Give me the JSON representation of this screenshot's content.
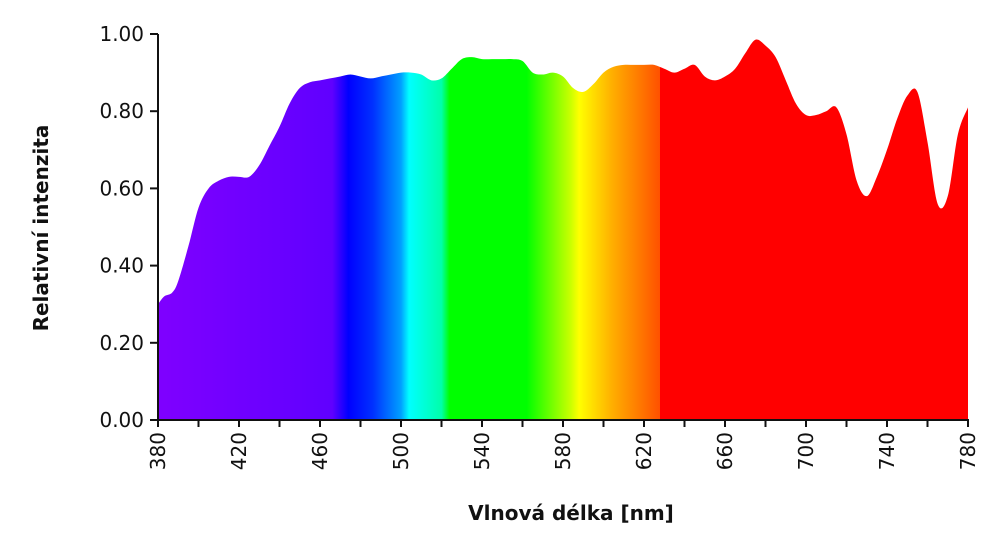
{
  "chart_data": {
    "type": "area",
    "xlabel": "Vlnová délka [nm]",
    "ylabel": "Relativní intenzita",
    "xlim": [
      380,
      780
    ],
    "ylim": [
      0,
      1
    ],
    "x_ticks": [
      380,
      420,
      460,
      500,
      540,
      580,
      620,
      660,
      700,
      740,
      780
    ],
    "y_ticks": [
      0,
      0.2,
      0.4,
      0.6,
      0.8,
      1.0
    ],
    "y_tick_labels": [
      "0.00",
      "0.20",
      "0.40",
      "0.60",
      "0.80",
      "1.00"
    ],
    "grid": false,
    "fill": "spectral gradient by wavelength",
    "series": [
      {
        "x": [
          380,
          383,
          387,
          390,
          395,
          400,
          405,
          410,
          415,
          420,
          425,
          430,
          435,
          440,
          445,
          450,
          455,
          460,
          465,
          470,
          475,
          480,
          485,
          490,
          495,
          500,
          505,
          510,
          515,
          520,
          525,
          530,
          535,
          540,
          545,
          550,
          555,
          560,
          565,
          570,
          575,
          580,
          585,
          590,
          595,
          600,
          605,
          610,
          615,
          620,
          625,
          630,
          635,
          640,
          645,
          650,
          655,
          660,
          665,
          670,
          675,
          680,
          685,
          690,
          695,
          700,
          705,
          710,
          715,
          720,
          725,
          730,
          735,
          740,
          745,
          750,
          755,
          760,
          765,
          770,
          775,
          780
        ],
        "y": [
          0.3,
          0.32,
          0.33,
          0.36,
          0.45,
          0.55,
          0.6,
          0.62,
          0.63,
          0.63,
          0.63,
          0.66,
          0.71,
          0.76,
          0.82,
          0.86,
          0.875,
          0.88,
          0.885,
          0.89,
          0.895,
          0.89,
          0.885,
          0.89,
          0.895,
          0.9,
          0.9,
          0.895,
          0.88,
          0.885,
          0.91,
          0.935,
          0.94,
          0.935,
          0.935,
          0.935,
          0.935,
          0.93,
          0.9,
          0.895,
          0.9,
          0.89,
          0.86,
          0.85,
          0.87,
          0.9,
          0.915,
          0.92,
          0.92,
          0.92,
          0.92,
          0.91,
          0.9,
          0.91,
          0.92,
          0.89,
          0.88,
          0.89,
          0.91,
          0.95,
          0.985,
          0.97,
          0.94,
          0.88,
          0.82,
          0.79,
          0.79,
          0.8,
          0.81,
          0.74,
          0.62,
          0.58,
          0.63,
          0.7,
          0.78,
          0.84,
          0.85,
          0.72,
          0.56,
          0.58,
          0.74,
          0.81
        ]
      }
    ]
  }
}
